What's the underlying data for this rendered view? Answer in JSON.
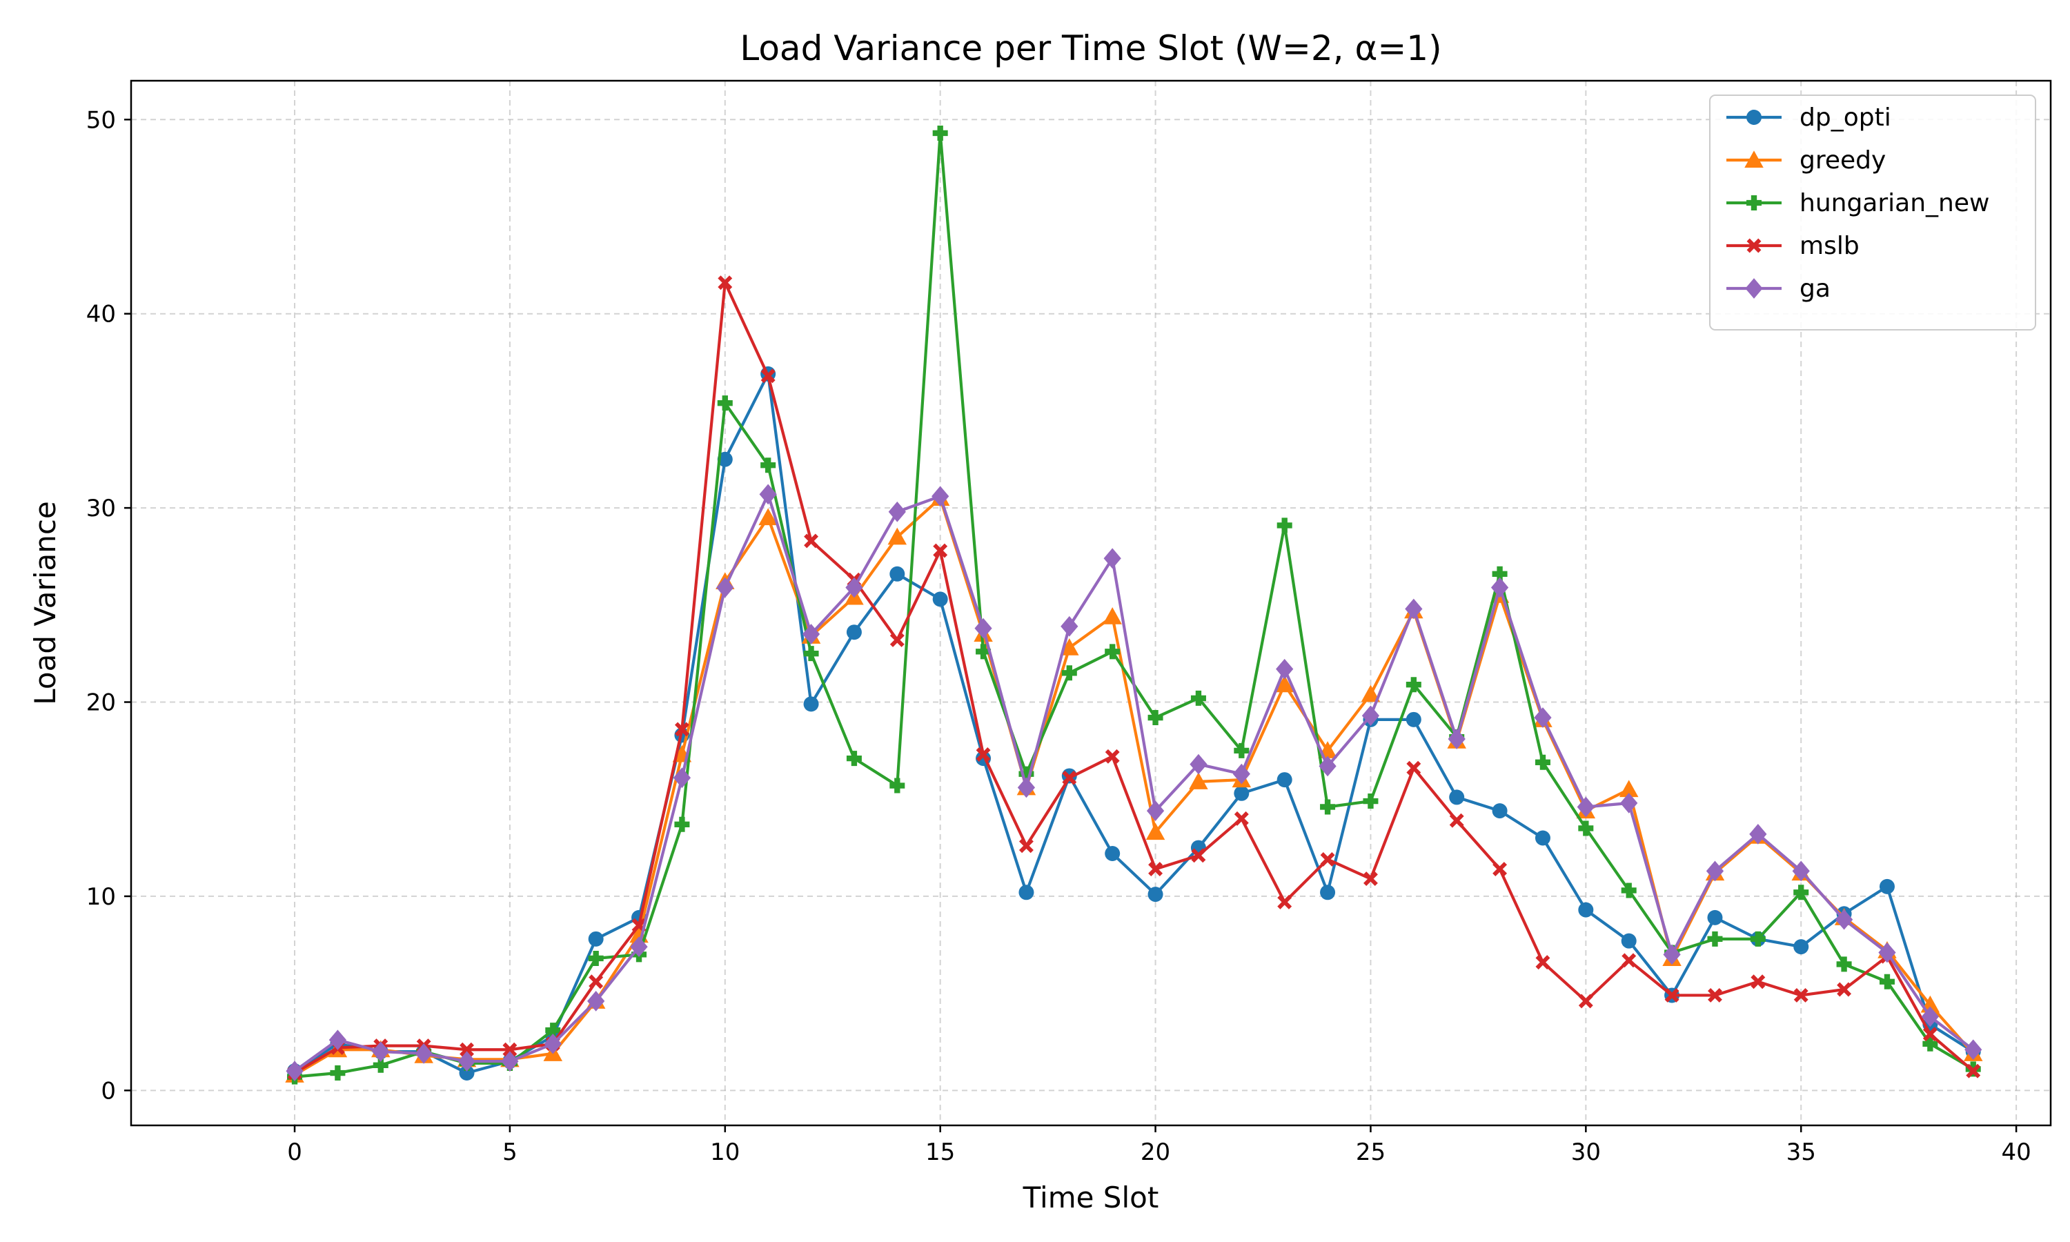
{
  "chart_data": {
    "type": "line",
    "title": "Load Variance per Time Slot (W=2, α=1)",
    "xlabel": "Time Slot",
    "ylabel": "Load Variance",
    "xlim": [
      -3.8,
      40.8
    ],
    "ylim": [
      -1.8,
      52
    ],
    "xticks": [
      0,
      5,
      10,
      15,
      20,
      25,
      30,
      35,
      40
    ],
    "yticks": [
      0,
      10,
      20,
      30,
      40,
      50
    ],
    "grid": true,
    "legend_position": "top-right",
    "x": [
      0,
      1,
      2,
      3,
      4,
      5,
      6,
      7,
      8,
      9,
      10,
      11,
      12,
      13,
      14,
      15,
      16,
      17,
      18,
      19,
      20,
      21,
      22,
      23,
      24,
      25,
      26,
      27,
      28,
      29,
      30,
      31,
      32,
      33,
      34,
      35,
      36,
      37,
      38,
      39
    ],
    "series": [
      {
        "name": "dp_opti",
        "color": "#1f77b4",
        "marker": "circle",
        "values": [
          1.0,
          2.4,
          2.0,
          2.0,
          0.9,
          1.5,
          2.8,
          7.8,
          8.9,
          18.3,
          32.5,
          36.9,
          19.9,
          23.6,
          26.6,
          25.3,
          17.1,
          10.2,
          16.2,
          12.2,
          10.1,
          12.5,
          15.3,
          16.0,
          10.2,
          19.1,
          19.1,
          15.1,
          14.4,
          13.0,
          9.3,
          7.7,
          4.9,
          8.9,
          7.8,
          7.4,
          9.1,
          10.5,
          3.4,
          2.0
        ]
      },
      {
        "name": "greedy",
        "color": "#ff7f0e",
        "marker": "triangle",
        "values": [
          0.8,
          2.1,
          2.1,
          1.8,
          1.6,
          1.6,
          1.9,
          4.6,
          8.0,
          17.3,
          26.2,
          29.5,
          23.4,
          25.4,
          28.5,
          30.5,
          23.5,
          15.6,
          22.8,
          24.4,
          13.3,
          15.9,
          16.0,
          20.9,
          17.5,
          20.4,
          24.7,
          18.0,
          25.5,
          19.1,
          14.4,
          15.5,
          6.8,
          11.2,
          13.1,
          11.2,
          8.9,
          7.2,
          4.4,
          1.9
        ]
      },
      {
        "name": "hungarian_new",
        "color": "#2ca02c",
        "marker": "plus",
        "values": [
          0.7,
          0.9,
          1.3,
          2.0,
          1.4,
          1.4,
          3.1,
          6.8,
          7.0,
          13.7,
          35.4,
          32.2,
          22.5,
          17.1,
          15.7,
          49.3,
          22.6,
          16.3,
          21.5,
          22.6,
          19.2,
          20.2,
          17.5,
          29.1,
          14.6,
          14.9,
          20.9,
          18.2,
          26.6,
          16.9,
          13.5,
          10.3,
          7.1,
          7.8,
          7.8,
          10.2,
          6.5,
          5.6,
          2.4,
          1.1
        ]
      },
      {
        "name": "mslb",
        "color": "#d62728",
        "marker": "x",
        "values": [
          0.9,
          2.2,
          2.3,
          2.3,
          2.1,
          2.1,
          2.4,
          5.6,
          8.5,
          18.6,
          41.6,
          36.8,
          28.3,
          26.3,
          23.2,
          27.8,
          17.3,
          12.6,
          16.1,
          17.2,
          11.4,
          12.1,
          14.0,
          9.7,
          11.9,
          10.9,
          16.6,
          13.9,
          11.4,
          6.6,
          4.6,
          6.7,
          4.9,
          4.9,
          5.6,
          4.9,
          5.2,
          6.9,
          2.9,
          1.0
        ]
      },
      {
        "name": "ga",
        "color": "#9467bd",
        "marker": "diamond",
        "values": [
          1.0,
          2.6,
          2.0,
          1.9,
          1.5,
          1.5,
          2.4,
          4.6,
          7.4,
          16.1,
          25.9,
          30.7,
          23.5,
          25.9,
          29.8,
          30.6,
          23.8,
          15.6,
          23.9,
          27.4,
          14.4,
          16.8,
          16.3,
          21.7,
          16.7,
          19.3,
          24.8,
          18.1,
          25.9,
          19.2,
          14.6,
          14.8,
          7.0,
          11.3,
          13.2,
          11.3,
          8.8,
          7.1,
          3.8,
          2.1
        ]
      }
    ]
  }
}
